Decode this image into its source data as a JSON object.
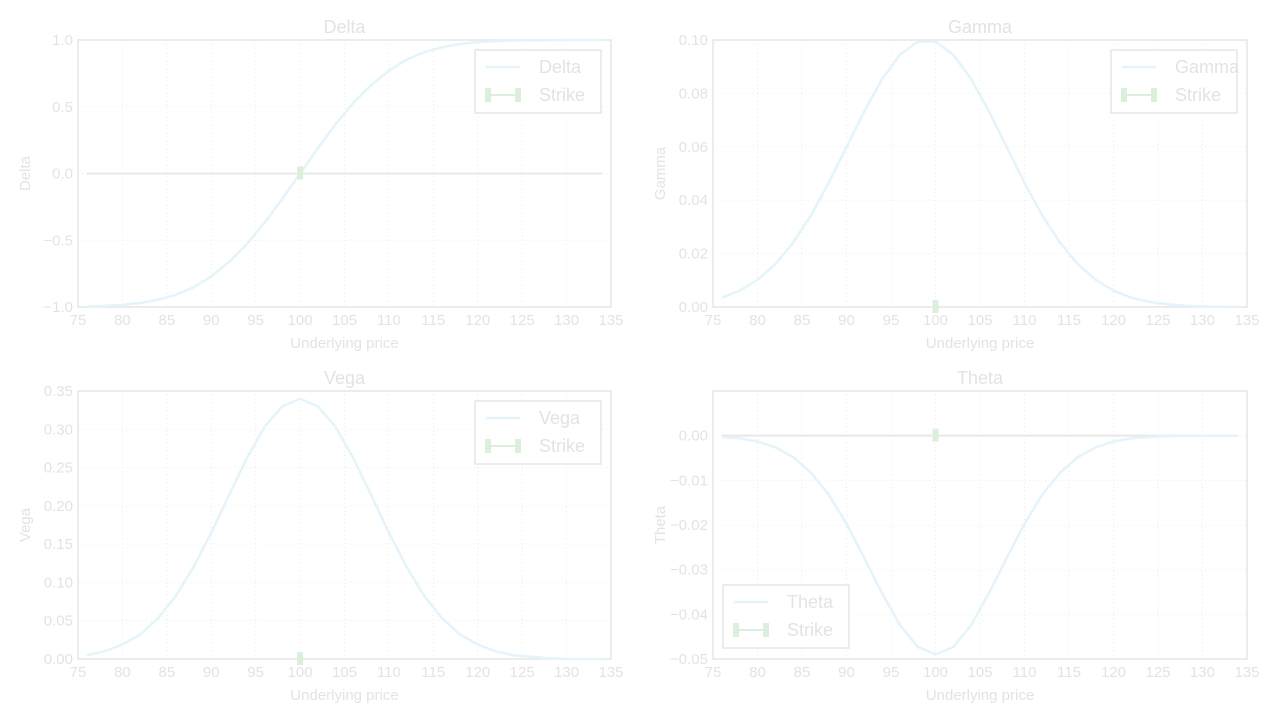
{
  "colors": {
    "curve": "#e4f4fa",
    "strike": "#dcefdc",
    "axes": "#e6e6e6",
    "text": "#e3e3e3",
    "zero_line": "#e8e8e8"
  },
  "chart_data": [
    {
      "type": "line",
      "title": "Delta",
      "xlabel": "Underlying price",
      "ylabel": "Delta",
      "xlim": [
        75,
        135
      ],
      "ylim": [
        -1.0,
        1.0
      ],
      "xticks": [
        75,
        80,
        85,
        90,
        95,
        100,
        105,
        110,
        115,
        120,
        125,
        130,
        135
      ],
      "yticks": [
        -1.0,
        -0.5,
        0.0,
        0.5,
        1.0
      ],
      "ytick_labels": [
        "−1.0",
        "−0.5",
        "0.0",
        "0.5",
        "1.0"
      ],
      "grid": true,
      "legend": "top-right",
      "zero_line": true,
      "x": [
        76,
        78,
        80,
        82,
        84,
        86,
        88,
        90,
        92,
        94,
        96,
        98,
        100,
        102,
        104,
        106,
        108,
        110,
        112,
        114,
        116,
        118,
        120,
        122,
        124,
        126,
        128,
        130,
        132,
        134
      ],
      "series": [
        {
          "name": "Delta",
          "values": [
            -0.996,
            -0.992,
            -0.984,
            -0.97,
            -0.946,
            -0.909,
            -0.853,
            -0.77,
            -0.663,
            -0.529,
            -0.369,
            -0.19,
            0.0,
            0.19,
            0.369,
            0.529,
            0.663,
            0.77,
            0.853,
            0.909,
            0.946,
            0.97,
            0.984,
            0.992,
            0.996,
            0.998,
            0.999,
            1.0,
            1.0,
            1.0
          ]
        }
      ],
      "strike": {
        "name": "Strike",
        "x": 100,
        "y": 0
      }
    },
    {
      "type": "line",
      "title": "Gamma",
      "xlabel": "Underlying price",
      "ylabel": "Gamma",
      "xlim": [
        75,
        135
      ],
      "ylim": [
        0.0,
        0.1
      ],
      "xticks": [
        75,
        80,
        85,
        90,
        95,
        100,
        105,
        110,
        115,
        120,
        125,
        130,
        135
      ],
      "yticks": [
        0.0,
        0.02,
        0.04,
        0.06,
        0.08,
        0.1
      ],
      "ytick_labels": [
        "0.00",
        "0.02",
        "0.04",
        "0.06",
        "0.08",
        "0.10"
      ],
      "grid": true,
      "legend": "top-right",
      "zero_line": false,
      "x": [
        76,
        78,
        80,
        82,
        84,
        86,
        88,
        90,
        92,
        94,
        96,
        98,
        100,
        102,
        104,
        106,
        108,
        110,
        112,
        114,
        116,
        118,
        120,
        122,
        124,
        126,
        128,
        130,
        132,
        134
      ],
      "series": [
        {
          "name": "Gamma",
          "values": [
            0.0035,
            0.0061,
            0.0102,
            0.016,
            0.0241,
            0.0343,
            0.0465,
            0.0599,
            0.0733,
            0.0854,
            0.0945,
            0.0994,
            0.0994,
            0.0945,
            0.0854,
            0.0733,
            0.0599,
            0.0465,
            0.0343,
            0.0241,
            0.016,
            0.0102,
            0.0061,
            0.0035,
            0.0019,
            0.001,
            0.0005,
            0.0002,
            0.0001,
            0.0
          ]
        }
      ],
      "strike": {
        "name": "Strike",
        "x": 100,
        "y": 0
      }
    },
    {
      "type": "line",
      "title": "Vega",
      "xlabel": "Underlying price",
      "ylabel": "Vega",
      "xlim": [
        75,
        135
      ],
      "ylim": [
        0.0,
        0.35
      ],
      "xticks": [
        75,
        80,
        85,
        90,
        95,
        100,
        105,
        110,
        115,
        120,
        125,
        130,
        135
      ],
      "yticks": [
        0.0,
        0.05,
        0.1,
        0.15,
        0.2,
        0.25,
        0.3,
        0.35
      ],
      "ytick_labels": [
        "0.00",
        "0.05",
        "0.10",
        "0.15",
        "0.20",
        "0.25",
        "0.30",
        "0.35"
      ],
      "grid": true,
      "legend": "top-right",
      "zero_line": false,
      "x": [
        76,
        78,
        80,
        82,
        84,
        86,
        88,
        90,
        92,
        94,
        96,
        98,
        100,
        102,
        104,
        106,
        108,
        110,
        112,
        114,
        116,
        118,
        120,
        122,
        124,
        126,
        128,
        130,
        132,
        134
      ],
      "series": [
        {
          "name": "Vega",
          "values": [
            0.005,
            0.01,
            0.019,
            0.032,
            0.053,
            0.082,
            0.12,
            0.165,
            0.214,
            0.262,
            0.303,
            0.33,
            0.34,
            0.33,
            0.303,
            0.262,
            0.214,
            0.165,
            0.12,
            0.082,
            0.053,
            0.032,
            0.019,
            0.01,
            0.005,
            0.003,
            0.001,
            0.0,
            0.0,
            0.0
          ]
        }
      ],
      "strike": {
        "name": "Strike",
        "x": 100,
        "y": 0
      }
    },
    {
      "type": "line",
      "title": "Theta",
      "xlabel": "Underlying price",
      "ylabel": "Theta",
      "xlim": [
        75,
        135
      ],
      "ylim": [
        -0.05,
        0.01
      ],
      "xticks": [
        75,
        80,
        85,
        90,
        95,
        100,
        105,
        110,
        115,
        120,
        125,
        130,
        135
      ],
      "yticks": [
        -0.05,
        -0.04,
        -0.03,
        -0.02,
        -0.01,
        0.0
      ],
      "ytick_labels": [
        "−0.05",
        "−0.04",
        "−0.03",
        "−0.02",
        "−0.01",
        "0.00"
      ],
      "grid": true,
      "legend": "lower-left",
      "zero_line": true,
      "x": [
        76,
        78,
        80,
        82,
        84,
        86,
        88,
        90,
        92,
        94,
        96,
        98,
        100,
        102,
        104,
        106,
        108,
        110,
        112,
        114,
        116,
        118,
        120,
        122,
        124,
        126,
        128,
        130,
        132,
        134
      ],
      "series": [
        {
          "name": "Theta",
          "values": [
            -0.0003,
            -0.0006,
            -0.0013,
            -0.0026,
            -0.0048,
            -0.0083,
            -0.0132,
            -0.0197,
            -0.0274,
            -0.0353,
            -0.0424,
            -0.0473,
            -0.049,
            -0.0473,
            -0.0424,
            -0.0353,
            -0.0274,
            -0.0197,
            -0.0132,
            -0.0083,
            -0.0048,
            -0.0026,
            -0.0013,
            -0.0006,
            -0.0003,
            -0.0001,
            0.0,
            0.0,
            0.0,
            0.0
          ]
        }
      ],
      "strike": {
        "name": "Strike",
        "x": 100,
        "y": 0
      }
    }
  ]
}
